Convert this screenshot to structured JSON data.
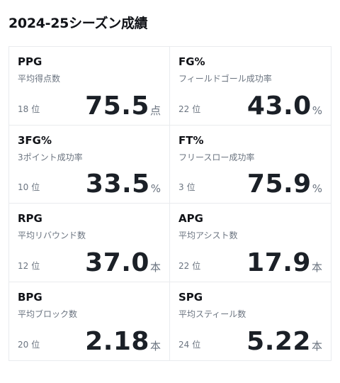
{
  "title": "2024-25シーズン成績",
  "rank_suffix": "位",
  "stats": [
    {
      "abbr": "PPG",
      "label": "平均得点数",
      "rank": "18",
      "value": "75.5",
      "unit": "点"
    },
    {
      "abbr": "FG%",
      "label": "フィールドゴール成功率",
      "rank": "22",
      "value": "43.0",
      "unit": "%"
    },
    {
      "abbr": "3FG%",
      "label": "3ポイント成功率",
      "rank": "10",
      "value": "33.5",
      "unit": "%"
    },
    {
      "abbr": "FT%",
      "label": "フリースロー成功率",
      "rank": "3",
      "value": "75.9",
      "unit": "%"
    },
    {
      "abbr": "RPG",
      "label": "平均リバウンド数",
      "rank": "12",
      "value": "37.0",
      "unit": "本"
    },
    {
      "abbr": "APG",
      "label": "平均アシスト数",
      "rank": "22",
      "value": "17.9",
      "unit": "本"
    },
    {
      "abbr": "BPG",
      "label": "平均ブロック数",
      "rank": "20",
      "value": "2.18",
      "unit": "本"
    },
    {
      "abbr": "SPG",
      "label": "平均スティール数",
      "rank": "24",
      "value": "5.22",
      "unit": "本"
    }
  ]
}
